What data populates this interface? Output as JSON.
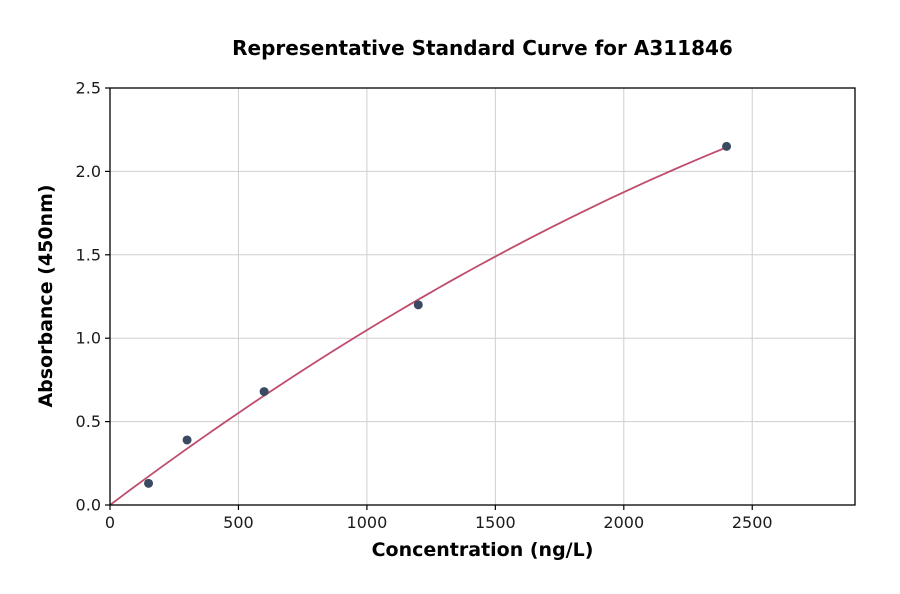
{
  "chart_data": {
    "type": "scatter",
    "title": "Representative Standard Curve for A311846",
    "xlabel": "Concentration (ng/L)",
    "ylabel": "Absorbance (450nm)",
    "x": [
      150,
      300,
      600,
      1200,
      2400
    ],
    "y": [
      0.13,
      0.39,
      0.68,
      1.2,
      2.15
    ],
    "xlim": [
      0,
      2900
    ],
    "ylim": [
      0,
      2.5
    ],
    "xticks": [
      0,
      500,
      1000,
      1500,
      2000,
      2500
    ],
    "xtick_labels": [
      "0",
      "500",
      "1000",
      "1500",
      "2000",
      "2500"
    ],
    "yticks": [
      0,
      0.5,
      1,
      1.5,
      2,
      2.5
    ],
    "ytick_labels": [
      "0.0",
      "0.5",
      "1.0",
      "1.5",
      "2.0",
      "2.5"
    ],
    "grid": true,
    "fit_curve": true,
    "legend_position": "none",
    "colors": {
      "points": "#3a4a63",
      "curve": "#bf4c6b",
      "grid": "#cfcfcf",
      "axis": "#000000",
      "tick_text": "#1a1a1a"
    }
  }
}
